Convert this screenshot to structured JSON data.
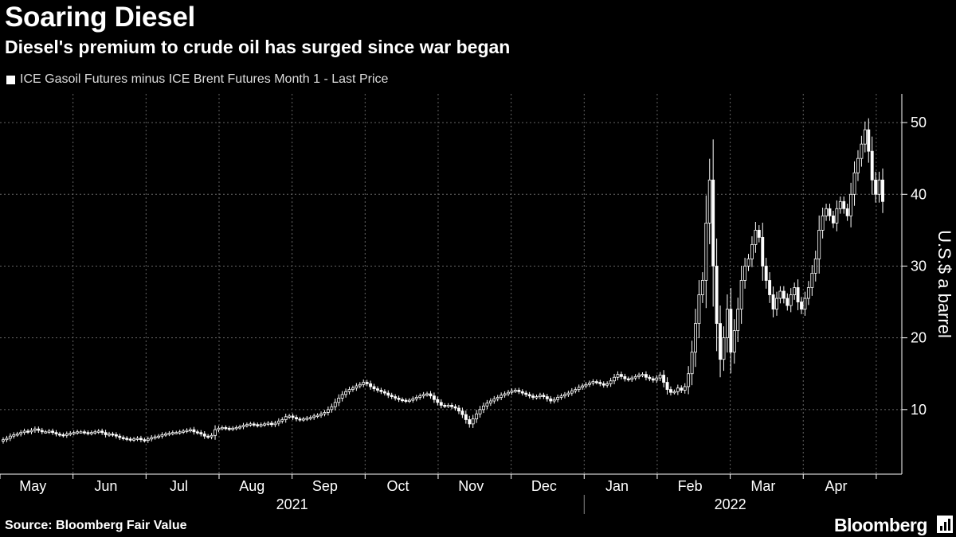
{
  "header": {
    "title": "Soaring Diesel",
    "subtitle": "Diesel's premium to crude oil has surged since war began"
  },
  "legend": {
    "series_name": "ICE Gasoil Futures minus ICE Brent Futures Month 1 - Last Price"
  },
  "footer": {
    "source": "Source: Bloomberg Fair Value",
    "brand": "Bloomberg"
  },
  "colors": {
    "background": "#000000",
    "candle": "#ffffff",
    "grid": "#666666"
  },
  "chart_data": {
    "type": "candlestick",
    "ylabel": "U.S.$ a barrel",
    "ylim": [
      1,
      54
    ],
    "yticks": [
      10,
      20,
      30,
      40,
      50
    ],
    "y_axis_side": "right",
    "grid": true,
    "month_labels": [
      "May",
      "Jun",
      "Jul",
      "Aug",
      "Sep",
      "Oct",
      "Nov",
      "Dec",
      "Jan",
      "Feb",
      "Mar",
      "Apr"
    ],
    "year_labels": [
      {
        "label": "2021",
        "months": [
          "May",
          "Jun",
          "Jul",
          "Aug",
          "Sep",
          "Oct",
          "Nov",
          "Dec"
        ]
      },
      {
        "label": "2022",
        "months": [
          "Jan",
          "Feb",
          "Mar",
          "Apr"
        ]
      }
    ],
    "series": [
      {
        "name": "ICE Gasoil Futures minus ICE Brent Futures Month 1 - Last Price",
        "x_start": "2021-05-01",
        "close": [
          5.8,
          6.0,
          6.3,
          6.5,
          6.6,
          6.8,
          7.0,
          6.9,
          7.1,
          7.3,
          7.1,
          6.9,
          6.9,
          7.0,
          6.8,
          6.6,
          6.5,
          6.4,
          6.6,
          6.7,
          6.8,
          6.9,
          6.9,
          6.8,
          6.7,
          6.8,
          6.9,
          7.0,
          6.8,
          6.5,
          6.6,
          6.5,
          6.3,
          6.1,
          6.0,
          5.9,
          5.8,
          5.9,
          6.0,
          5.8,
          5.7,
          5.9,
          6.1,
          6.2,
          6.3,
          6.5,
          6.6,
          6.7,
          6.8,
          6.8,
          6.9,
          7.0,
          7.1,
          7.2,
          6.9,
          6.8,
          6.6,
          6.3,
          6.2,
          6.4,
          7.2,
          7.4,
          7.5,
          7.4,
          7.3,
          7.4,
          7.5,
          7.6,
          7.8,
          7.9,
          8.0,
          7.9,
          7.8,
          7.9,
          8.0,
          8.1,
          7.9,
          8.1,
          8.4,
          8.6,
          9.0,
          9.1,
          8.9,
          8.7,
          8.6,
          8.7,
          8.8,
          8.9,
          9.1,
          9.2,
          9.4,
          9.6,
          10.0,
          10.4,
          11.0,
          11.6,
          12.1,
          12.5,
          12.8,
          13.0,
          13.3,
          13.5,
          13.8,
          13.6,
          13.2,
          12.9,
          12.7,
          12.5,
          12.3,
          12.0,
          11.8,
          11.6,
          11.4,
          11.3,
          11.2,
          11.3,
          11.5,
          11.7,
          11.9,
          12.1,
          12.2,
          11.9,
          11.4,
          11.0,
          10.6,
          10.5,
          10.6,
          10.4,
          10.2,
          9.8,
          9.3,
          8.6,
          8.0,
          8.7,
          9.4,
          10.0,
          10.5,
          10.9,
          11.2,
          11.5,
          11.7,
          12.0,
          12.2,
          12.4,
          12.6,
          12.7,
          12.5,
          12.3,
          12.1,
          11.9,
          11.7,
          11.8,
          12.0,
          11.8,
          11.5,
          11.2,
          11.4,
          11.7,
          11.9,
          12.1,
          12.3,
          12.6,
          12.8,
          13.1,
          13.3,
          13.5,
          13.7,
          13.9,
          13.8,
          13.6,
          13.4,
          13.6,
          14.0,
          14.5,
          14.9,
          14.6,
          14.3,
          14.2,
          14.4,
          14.6,
          14.8,
          14.9,
          14.5,
          14.3,
          14.1,
          14.4,
          14.8,
          13.8,
          12.8,
          12.4,
          12.5,
          13.0,
          12.7,
          13.2,
          15.0,
          18.0,
          22.0,
          26.0,
          28.0,
          36.0,
          42.0,
          30.0,
          22.0,
          17.0,
          20.0,
          24.0,
          18.0,
          21.0,
          24.0,
          28.0,
          30.0,
          31.0,
          33.0,
          35.0,
          34.0,
          30.0,
          28.0,
          26.0,
          24.0,
          25.5,
          26.5,
          25.5,
          24.5,
          26.0,
          27.0,
          25.0,
          24.0,
          25.5,
          27.0,
          29.0,
          31.0,
          35.0,
          37.0,
          38.0,
          37.0,
          36.0,
          38.0,
          39.0,
          38.0,
          37.0,
          40.0,
          43.0,
          45.0,
          47.0,
          49.0,
          46.0,
          42.0,
          40.0,
          42.0,
          39.0
        ]
      }
    ]
  }
}
